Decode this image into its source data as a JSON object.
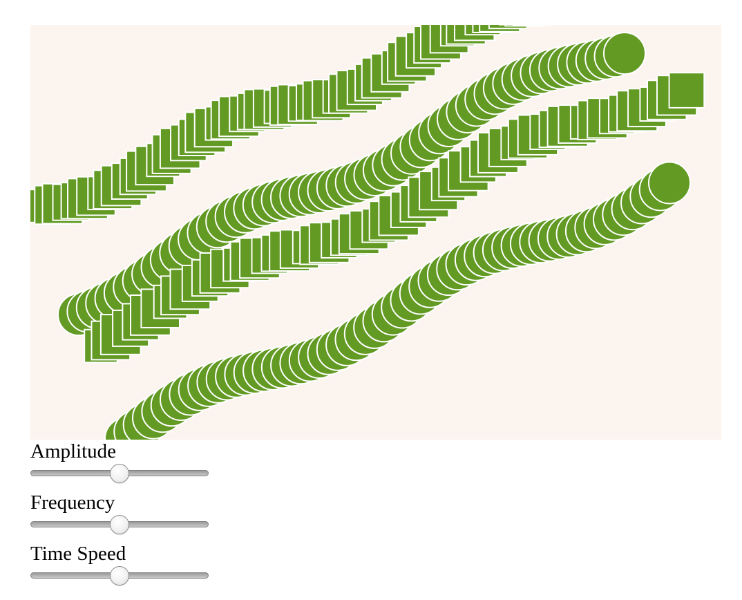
{
  "canvas": {
    "background": "#fbf4ef",
    "shape_fill": "#629a23",
    "shape_stroke": "#ffffff"
  },
  "controls": [
    {
      "label": "Amplitude",
      "value": 0.5
    },
    {
      "label": "Frequency",
      "value": 0.5
    },
    {
      "label": "Time Speed",
      "value": 0.5
    }
  ]
}
